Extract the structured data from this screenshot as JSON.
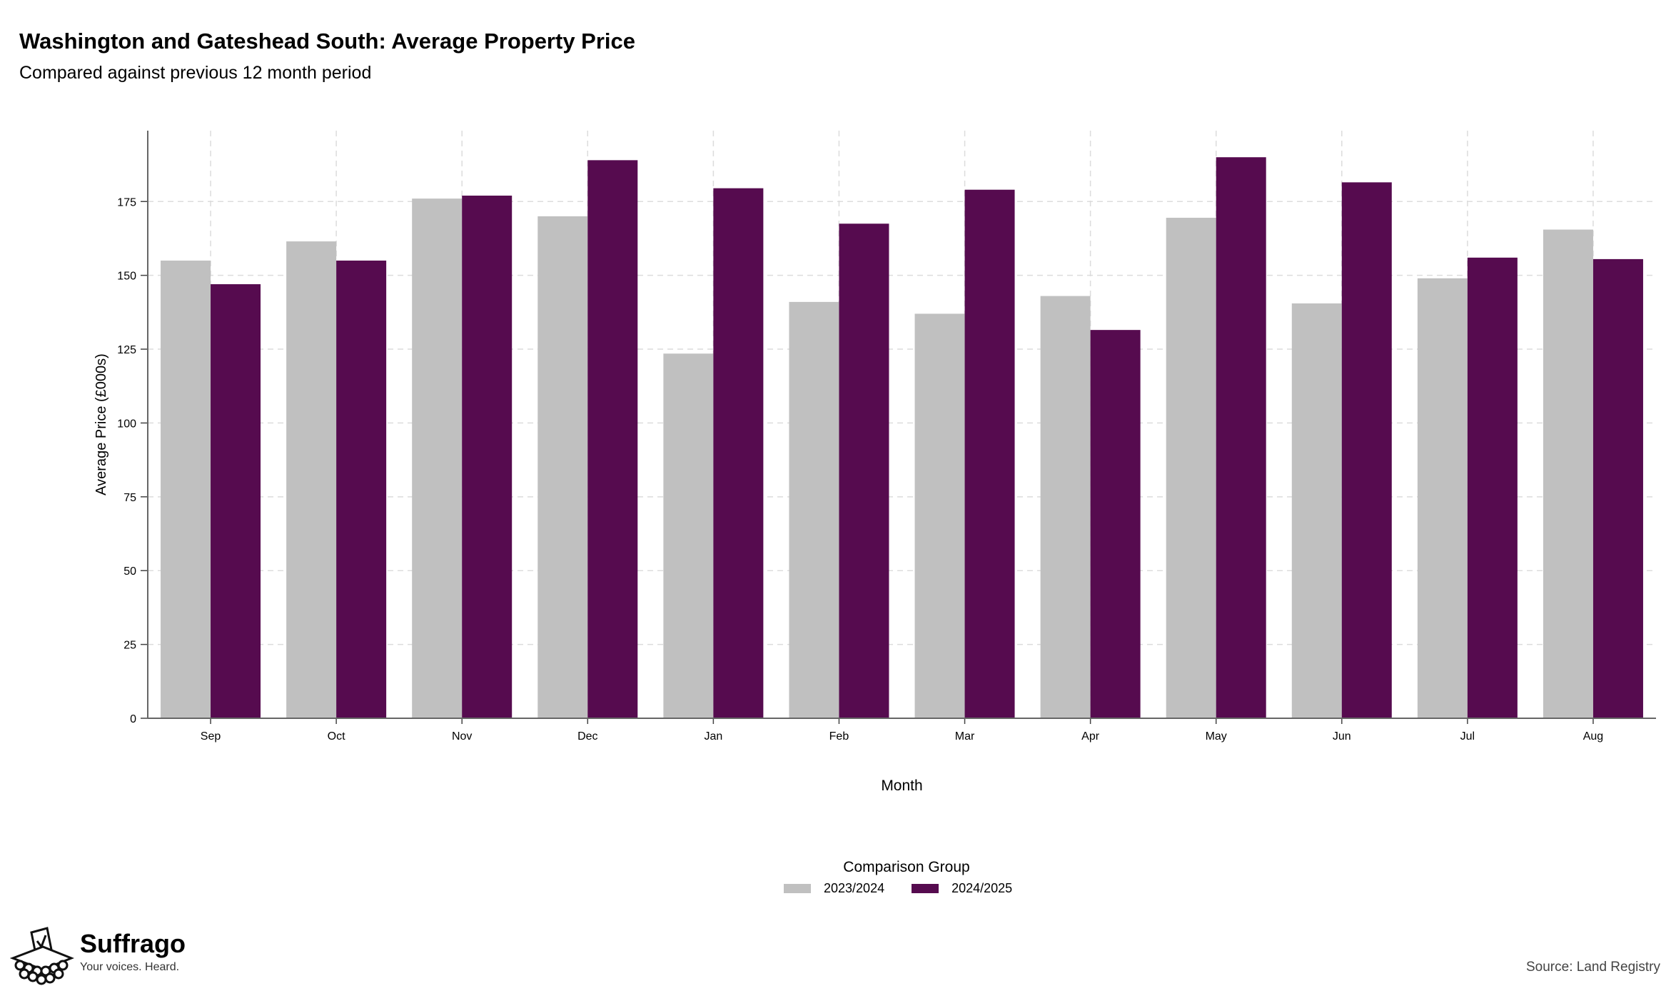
{
  "title": "Washington and Gateshead South: Average Property Price",
  "subtitle": "Compared against previous 12 month period",
  "legend": {
    "title": "Comparison Group",
    "items": [
      {
        "label": "2023/2024",
        "color": "#c0c0c0"
      },
      {
        "label": "2024/2025",
        "color": "#560b4f"
      }
    ]
  },
  "brand": {
    "name": "Suffrago",
    "tagline": "Your voices. Heard.",
    "icon": "ballot-box-icon"
  },
  "source": "Source: Land Registry",
  "chart_data": {
    "type": "bar",
    "xlabel": "Month",
    "ylabel": "Average Price (£000s)",
    "ylim": [
      0,
      199
    ],
    "yticks": [
      0,
      25,
      50,
      75,
      100,
      125,
      150,
      175
    ],
    "grid": true,
    "legend_position": "bottom",
    "categories": [
      "Sep",
      "Oct",
      "Nov",
      "Dec",
      "Jan",
      "Feb",
      "Mar",
      "Apr",
      "May",
      "Jun",
      "Jul",
      "Aug"
    ],
    "series": [
      {
        "name": "2023/2024",
        "color": "#c0c0c0",
        "values": [
          155,
          161.5,
          176,
          170,
          123.5,
          141,
          137,
          143,
          169.5,
          140.5,
          149,
          165.5
        ]
      },
      {
        "name": "2024/2025",
        "color": "#560b4f",
        "values": [
          147,
          155,
          177,
          189,
          179.5,
          167.5,
          179,
          131.5,
          190,
          181.5,
          156,
          155.5
        ]
      }
    ]
  }
}
